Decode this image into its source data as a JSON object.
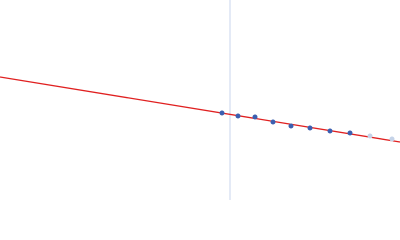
{
  "chart_data": {
    "type": "scatter",
    "xlim": [
      0,
      400
    ],
    "ylim": [
      0,
      200
    ],
    "vline": 230,
    "vline_color": "#c8d4ec",
    "series": [
      {
        "style": "points",
        "color": "#3b5fb0",
        "x": [
          222,
          238,
          255,
          273,
          291,
          310,
          330,
          350
        ],
        "values": [
          87,
          84,
          83,
          78,
          74,
          72,
          69,
          67
        ]
      },
      {
        "style": "points",
        "color": "#c5d3e8",
        "x": [
          370,
          392
        ],
        "values": [
          64,
          61
        ]
      },
      {
        "style": "line",
        "color": "#e02020",
        "x": [
          0,
          400
        ],
        "values": [
          123,
          58
        ]
      }
    ]
  }
}
